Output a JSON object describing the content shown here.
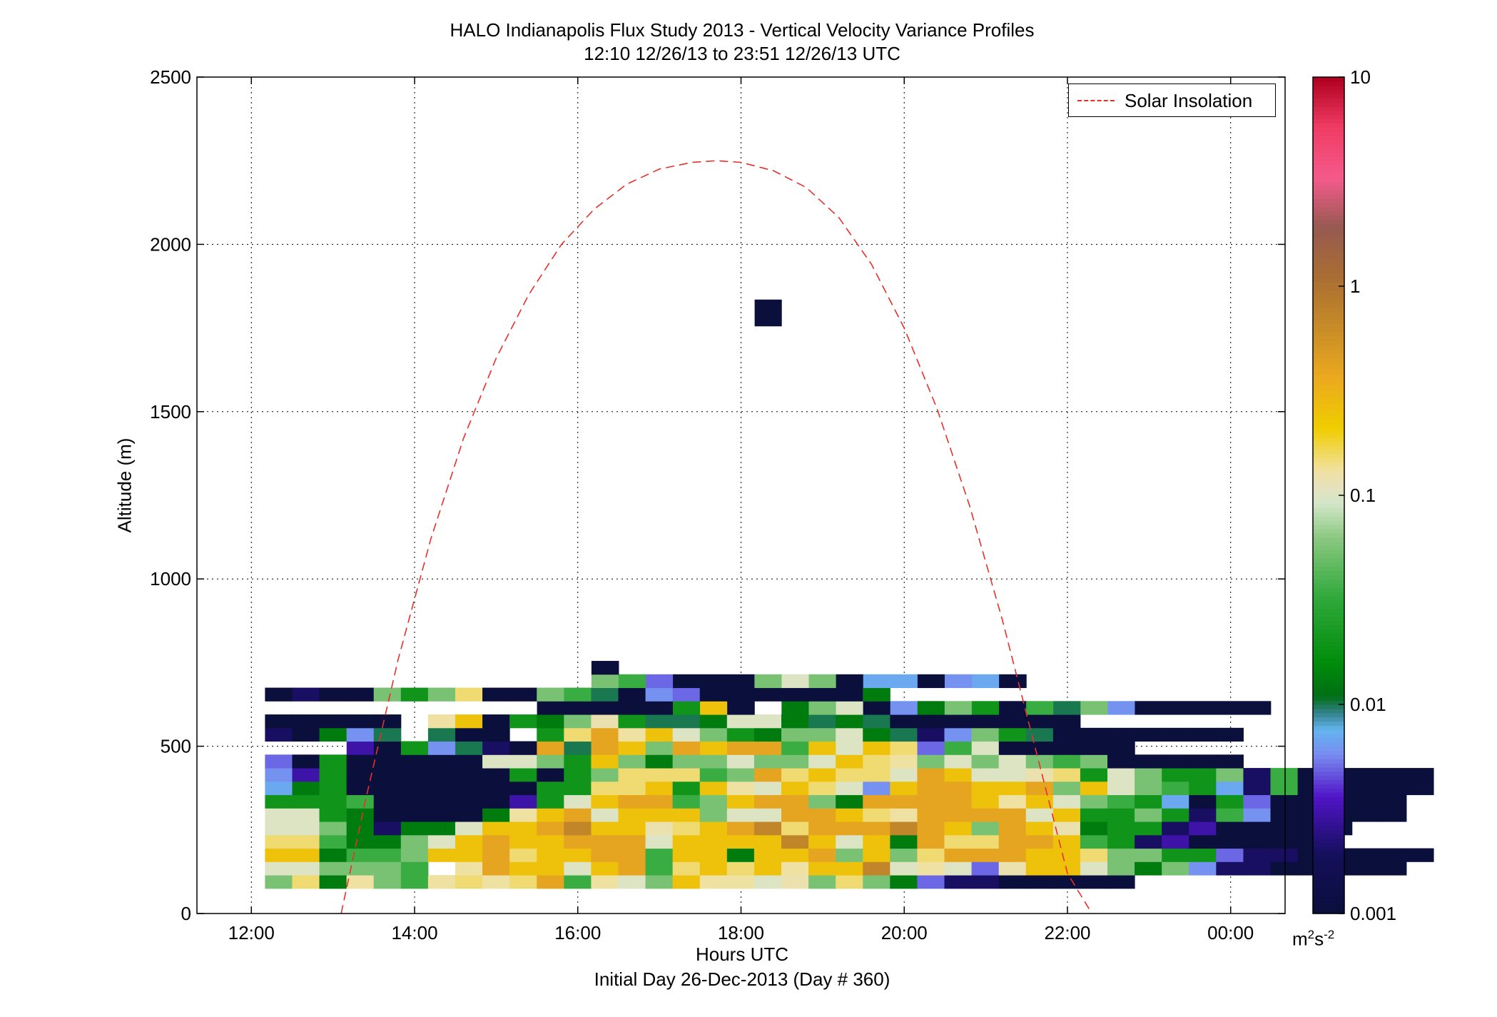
{
  "title": {
    "line1": "HALO Indianapolis Flux Study 2013 - Vertical Velocity Variance Profiles",
    "line2": "12:10 12/26/13 to 23:51 12/26/13  UTC"
  },
  "xlabel": {
    "line1": "Hours UTC",
    "line2": "Initial Day 26-Dec-2013 (Day # 360)"
  },
  "ylabel": "Altitude (m)",
  "legend": {
    "entry": "Solar Insolation",
    "color": "#e8302a",
    "placement": "top-right"
  },
  "colorbar": {
    "units_base": "m",
    "units_exp1": "2",
    "units_mid": "s",
    "units_exp2": "-2",
    "scale": "log",
    "range": [
      0.001,
      10
    ],
    "tick_labels": [
      "0.001",
      "0.01",
      "0.1",
      "1",
      "10"
    ]
  },
  "chart_data": {
    "type": "heatmap",
    "x_axis": {
      "label": "Hours UTC",
      "range": [
        11.333,
        24.667
      ],
      "unit": "hours UTC",
      "ticks": [
        12,
        14,
        16,
        18,
        20,
        22,
        24
      ],
      "tick_labels": [
        "12:00",
        "14:00",
        "16:00",
        "18:00",
        "20:00",
        "22:00",
        "00:00"
      ]
    },
    "y_axis": {
      "label": "Altitude (m)",
      "range": [
        0,
        2500
      ],
      "ticks": [
        0,
        500,
        1000,
        1500,
        2000,
        2500
      ],
      "tick_labels": [
        "0",
        "500",
        "1000",
        "1500",
        "2000",
        "2500"
      ]
    },
    "grid": true,
    "cells": {
      "x_start": 12.167,
      "dx": 0.333,
      "y_start": 75,
      "dy": 40,
      "legend": {
        "K": 0.001,
        "I": 0.002,
        "P": 0.003,
        "B": 0.005,
        "L": 0.006,
        "T": 0.007,
        "V": 0.01,
        "G": 0.013,
        "M": 0.02,
        "N": 0.035,
        "S": 0.055,
        "W": 0.1,
        "X": 0.12,
        "Z": 0.13,
        "C": 0.15,
        "Y": 0.25,
        "O": 0.4,
        "R": 0.7,
        "H": 1.2
      },
      "rows": [
        "SCGZSNZCZCONZWSYZZWXSCSGBIIKKKKK",
        "WWSSSN.ZOYYWYONCYCYZYYRWZWBXYYWSGSLIIKKKKK",
        "YYGNNSYYOCYYOONYYGYYOSYSCOOOYYCSSMMBIIKKKKK",
        "CCNGGSWYOYYOOOWYYYYRYWYGOCCOOYNMIPKKKKK",
        "WWSGIGGWYYORYYXCYORCOOOROYSOYXGMMIPKKKKK",
        "WWMGKKKKGZYOWYYYSWWOOYCZOOOOWYMMSMINLKKKKK",
        "MMMNKKKKKPMWYOONSYOOSGOOOOYZYWSNMTKMBKKKKK",
        "TGMKKKKKKKMMCCYMYZWYCWLYOOYYOSYWSNMTINKKKKK",
        "LPMKKKKKKMKMSCCCNSOCYCCWOYWWXCMWSMMSINKKKKK",
        "BKMKKKKKWWSMYSGSSWSSWYCZSWSWSNSKKKKK",
        "PKMLVIKOVOYSOYOONYWYCBNWKKKKK",
        "IKGLV.VKK.MCOZYWSMGSSWGVILSMVKKKKKKK",
        "KKKKK.ZYKMGSXMVVGWWGVGVKKKKKKK",
        "KKKKKMYK.GSWKLGSMKNVSLKKKKK",
        "KIKKSMSCKKSNVKLBKKKKKKG",
        "SNBKKKSWSKTTKLTK",
        "K"
      ],
      "row_starts": [
        12.167,
        12.167,
        12.167,
        12.167,
        12.167,
        12.167,
        12.167,
        12.167,
        12.167,
        12.167,
        13.167,
        12.167,
        12.167,
        15.5,
        12.167,
        16.167,
        16.167
      ],
      "upper": [
        {
          "x": 18.167,
          "y": 1755,
          "value": 0.001
        }
      ]
    },
    "series": [
      {
        "name": "Solar Insolation",
        "style": "dashed",
        "color": "#e8302a",
        "x": [
          13.1,
          13.4,
          13.8,
          14.2,
          14.6,
          15.0,
          15.4,
          15.8,
          16.2,
          16.6,
          17.0,
          17.4,
          17.7,
          18.0,
          18.4,
          18.8,
          19.2,
          19.6,
          20.0,
          20.4,
          20.8,
          21.2,
          21.6,
          22.0,
          22.3
        ],
        "y": [
          0,
          340,
          760,
          1120,
          1420,
          1660,
          1850,
          2000,
          2105,
          2180,
          2225,
          2245,
          2250,
          2245,
          2220,
          2170,
          2080,
          1940,
          1750,
          1510,
          1220,
          880,
          500,
          120,
          0
        ]
      }
    ]
  }
}
